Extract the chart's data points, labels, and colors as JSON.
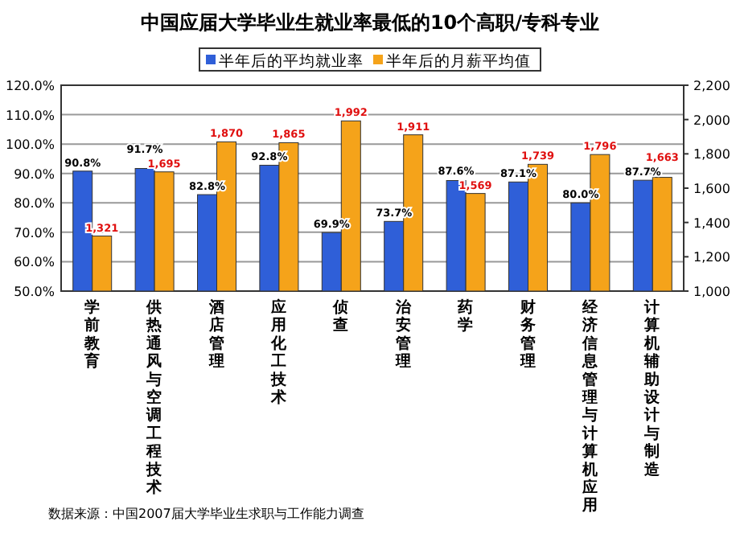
{
  "chart_data": {
    "type": "bar",
    "title": "中国应届大学毕业生就业率最低的10个高职/专科专业",
    "categories": [
      "学前教育",
      "供热通风与空调工程技术",
      "酒店管理",
      "应用化工技术",
      "侦查",
      "治安管理",
      "药学",
      "财务管理",
      "经济信息管理与计算机应用",
      "计算机辅助设计与制造"
    ],
    "series": [
      {
        "name": "半年后的平均就业率",
        "color": "#2f5fd8",
        "values": [
          90.8,
          91.7,
          82.8,
          92.8,
          69.9,
          73.7,
          87.6,
          87.1,
          80.0,
          87.7
        ],
        "value_labels": [
          "90.8%",
          "91.7%",
          "82.8%",
          "92.8%",
          "69.9%",
          "73.7%",
          "87.6%",
          "87.1%",
          "80.0%",
          "87.7%"
        ]
      },
      {
        "name": "半年后的月薪平均值",
        "color": "#f5a31a",
        "axis": "y2",
        "values": [
          1321,
          1695,
          1870,
          1865,
          1992,
          1911,
          1569,
          1739,
          1796,
          1663
        ],
        "value_labels": [
          "1,321",
          "1,695",
          "1,870",
          "1,865",
          "1,992",
          "1,911",
          "1,569",
          "1,739",
          "1,796",
          "1,663"
        ]
      }
    ],
    "ylim": [
      50,
      120
    ],
    "yticks": [
      {
        "value": 50,
        "label": "50.0%"
      },
      {
        "value": 60,
        "label": "60.0%"
      },
      {
        "value": 70,
        "label": "70.0%"
      },
      {
        "value": 80,
        "label": "80.0%"
      },
      {
        "value": 90,
        "label": "90.0%"
      },
      {
        "value": 100,
        "label": "100.0%"
      },
      {
        "value": 110,
        "label": "110.0%"
      },
      {
        "value": 120,
        "label": "120.0%"
      }
    ],
    "y2lim": [
      1000,
      2200
    ],
    "y2ticks": [
      {
        "value": 1000,
        "label": "1,000"
      },
      {
        "value": 1200,
        "label": "1,200"
      },
      {
        "value": 1400,
        "label": "1,400"
      },
      {
        "value": 1600,
        "label": "1,600"
      },
      {
        "value": 1800,
        "label": "1,800"
      },
      {
        "value": 2000,
        "label": "2,000"
      },
      {
        "value": 2200,
        "label": "2,200"
      }
    ],
    "grid": "y",
    "legend": "top",
    "annotations": [
      "数据来源：中国2007届大学毕业生求职与工作能力调查"
    ]
  }
}
